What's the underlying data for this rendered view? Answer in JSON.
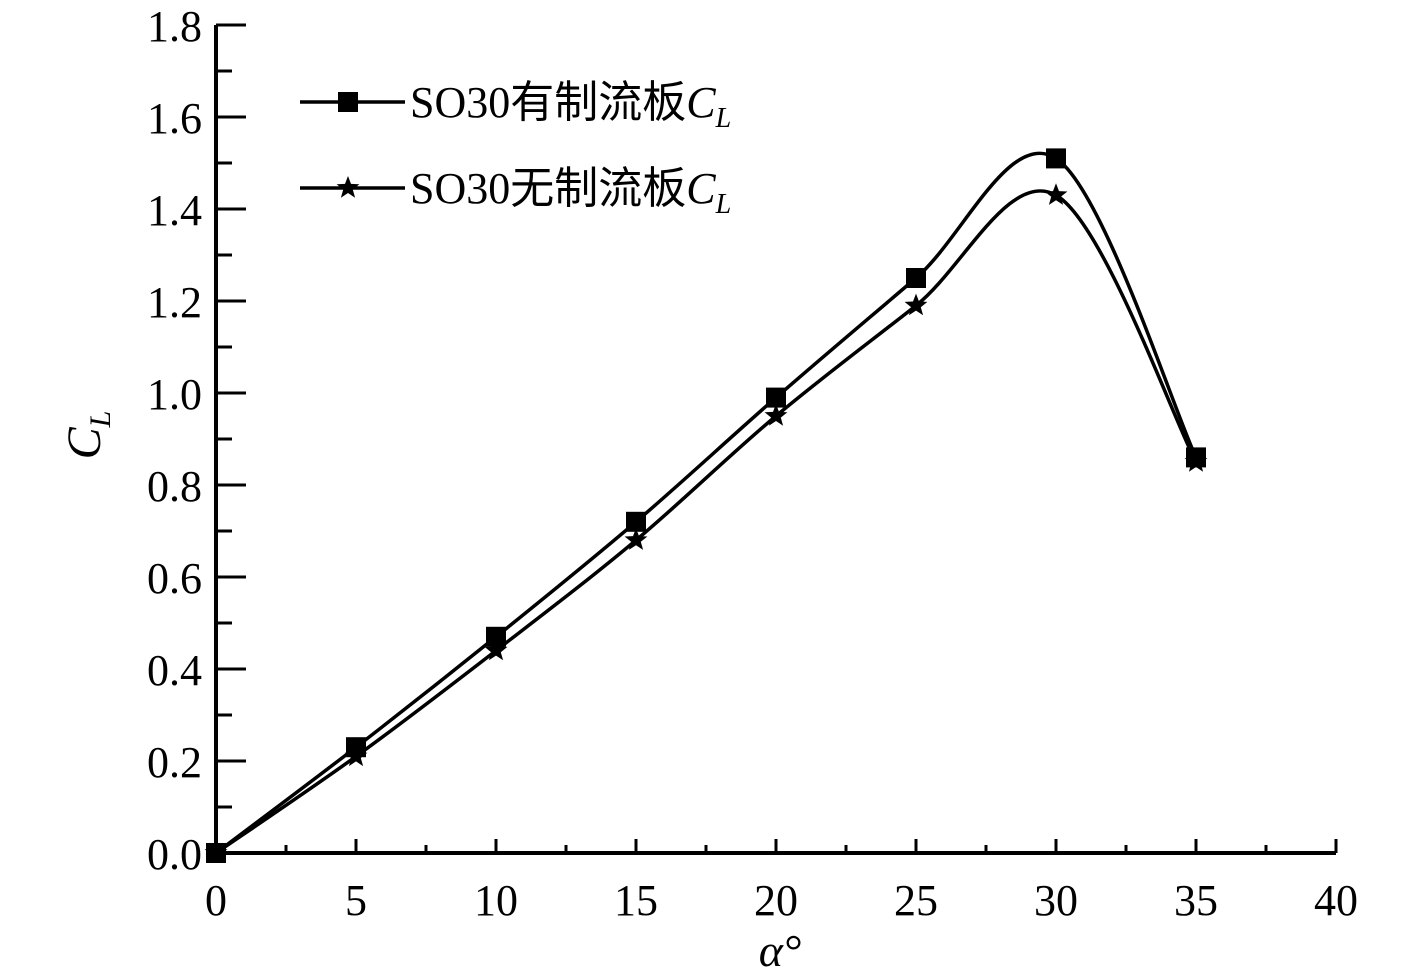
{
  "chart_data": {
    "type": "line",
    "xlabel": "α°",
    "ylabel": {
      "main": "C",
      "sub": "L"
    },
    "xlim": [
      0,
      40
    ],
    "ylim": [
      0.0,
      1.8
    ],
    "x_ticks": [
      "0",
      "5",
      "10",
      "15",
      "20",
      "25",
      "30",
      "35",
      "40"
    ],
    "y_ticks": [
      "0.0",
      "0.2",
      "0.4",
      "0.6",
      "0.8",
      "1.0",
      "1.2",
      "1.4",
      "1.6",
      "1.8"
    ],
    "grid": false,
    "legend_position": "top-left",
    "x": [
      0,
      5,
      10,
      15,
      20,
      25,
      30,
      35
    ],
    "series": [
      {
        "name": "SO30有制流板C_L",
        "name_text": "SO30有制流板",
        "name_italic": "C",
        "name_sub": "L",
        "marker": "square",
        "values": [
          0.0,
          0.23,
          0.47,
          0.72,
          0.99,
          1.25,
          1.51,
          0.86
        ]
      },
      {
        "name": "SO30无制流板C_L",
        "name_text": "SO30无制流板",
        "name_italic": "C",
        "name_sub": "L",
        "marker": "star",
        "values": [
          0.0,
          0.21,
          0.44,
          0.68,
          0.95,
          1.19,
          1.43,
          0.85
        ]
      }
    ]
  }
}
